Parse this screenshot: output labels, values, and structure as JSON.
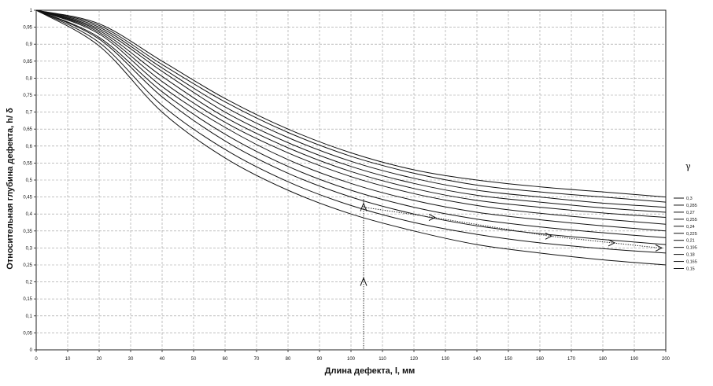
{
  "chart_data": {
    "type": "line",
    "xlabel": "Длина дефекта, l, мм",
    "ylabel": "Относительная глубина дефекта, h/ δ",
    "xlim": [
      0,
      200
    ],
    "ylim": [
      0,
      1
    ],
    "x_ticks": [
      "0",
      "10",
      "20",
      "30",
      "40",
      "50",
      "60",
      "70",
      "80",
      "90",
      "100",
      "110",
      "120",
      "130",
      "140",
      "150",
      "160",
      "170",
      "180",
      "190",
      "200"
    ],
    "y_ticks": [
      "0",
      "0,05",
      "0,1",
      "0,15",
      "0,2",
      "0,25",
      "0,3",
      "0,35",
      "0,4",
      "0,45",
      "0,5",
      "0,55",
      "0,6",
      "0,65",
      "0,7",
      "0,75",
      "0,8",
      "0,85",
      "0,9",
      "0,95",
      "1"
    ],
    "grid": true,
    "legend_title": "γ",
    "legend_position": "right",
    "x": [
      0,
      20,
      40,
      60,
      80,
      100,
      120,
      140,
      160,
      180,
      200
    ],
    "series": [
      {
        "name": "0,3",
        "values": [
          1,
          0.96,
          0.85,
          0.74,
          0.65,
          0.58,
          0.53,
          0.5,
          0.48,
          0.465,
          0.45
        ]
      },
      {
        "name": "0,285",
        "values": [
          1,
          0.955,
          0.84,
          0.73,
          0.64,
          0.57,
          0.52,
          0.485,
          0.465,
          0.45,
          0.435
        ]
      },
      {
        "name": "0,27",
        "values": [
          1,
          0.95,
          0.83,
          0.715,
          0.625,
          0.555,
          0.505,
          0.47,
          0.45,
          0.432,
          0.42
        ]
      },
      {
        "name": "0,255",
        "values": [
          1,
          0.945,
          0.82,
          0.7,
          0.61,
          0.54,
          0.49,
          0.455,
          0.435,
          0.418,
          0.405
        ]
      },
      {
        "name": "0,24",
        "values": [
          1,
          0.94,
          0.805,
          0.685,
          0.595,
          0.525,
          0.475,
          0.44,
          0.42,
          0.403,
          0.39
        ]
      },
      {
        "name": "0,225",
        "values": [
          1,
          0.935,
          0.79,
          0.67,
          0.58,
          0.51,
          0.46,
          0.425,
          0.402,
          0.385,
          0.37
        ]
      },
      {
        "name": "0,21",
        "values": [
          1,
          0.93,
          0.775,
          0.655,
          0.56,
          0.49,
          0.44,
          0.405,
          0.383,
          0.365,
          0.35
        ]
      },
      {
        "name": "0,195",
        "values": [
          1,
          0.92,
          0.76,
          0.635,
          0.54,
          0.47,
          0.42,
          0.385,
          0.362,
          0.345,
          0.33
        ]
      },
      {
        "name": "0,18",
        "values": [
          1,
          0.915,
          0.745,
          0.615,
          0.52,
          0.45,
          0.4,
          0.365,
          0.342,
          0.325,
          0.31
        ]
      },
      {
        "name": "0,165",
        "values": [
          1,
          0.905,
          0.72,
          0.59,
          0.495,
          0.425,
          0.375,
          0.34,
          0.315,
          0.298,
          0.285
        ]
      },
      {
        "name": "0,15",
        "values": [
          1,
          0.895,
          0.7,
          0.565,
          0.47,
          0.4,
          0.35,
          0.31,
          0.285,
          0.265,
          0.25
        ]
      }
    ],
    "annotations": {
      "vertical_dotted_line_x": 104,
      "marker_points": [
        {
          "x": 104,
          "y": 0.2
        },
        {
          "x": 104,
          "y": 0.42
        },
        {
          "x": 126,
          "y": 0.39
        },
        {
          "x": 163,
          "y": 0.335
        },
        {
          "x": 183,
          "y": 0.315
        },
        {
          "x": 198,
          "y": 0.3
        }
      ]
    }
  }
}
